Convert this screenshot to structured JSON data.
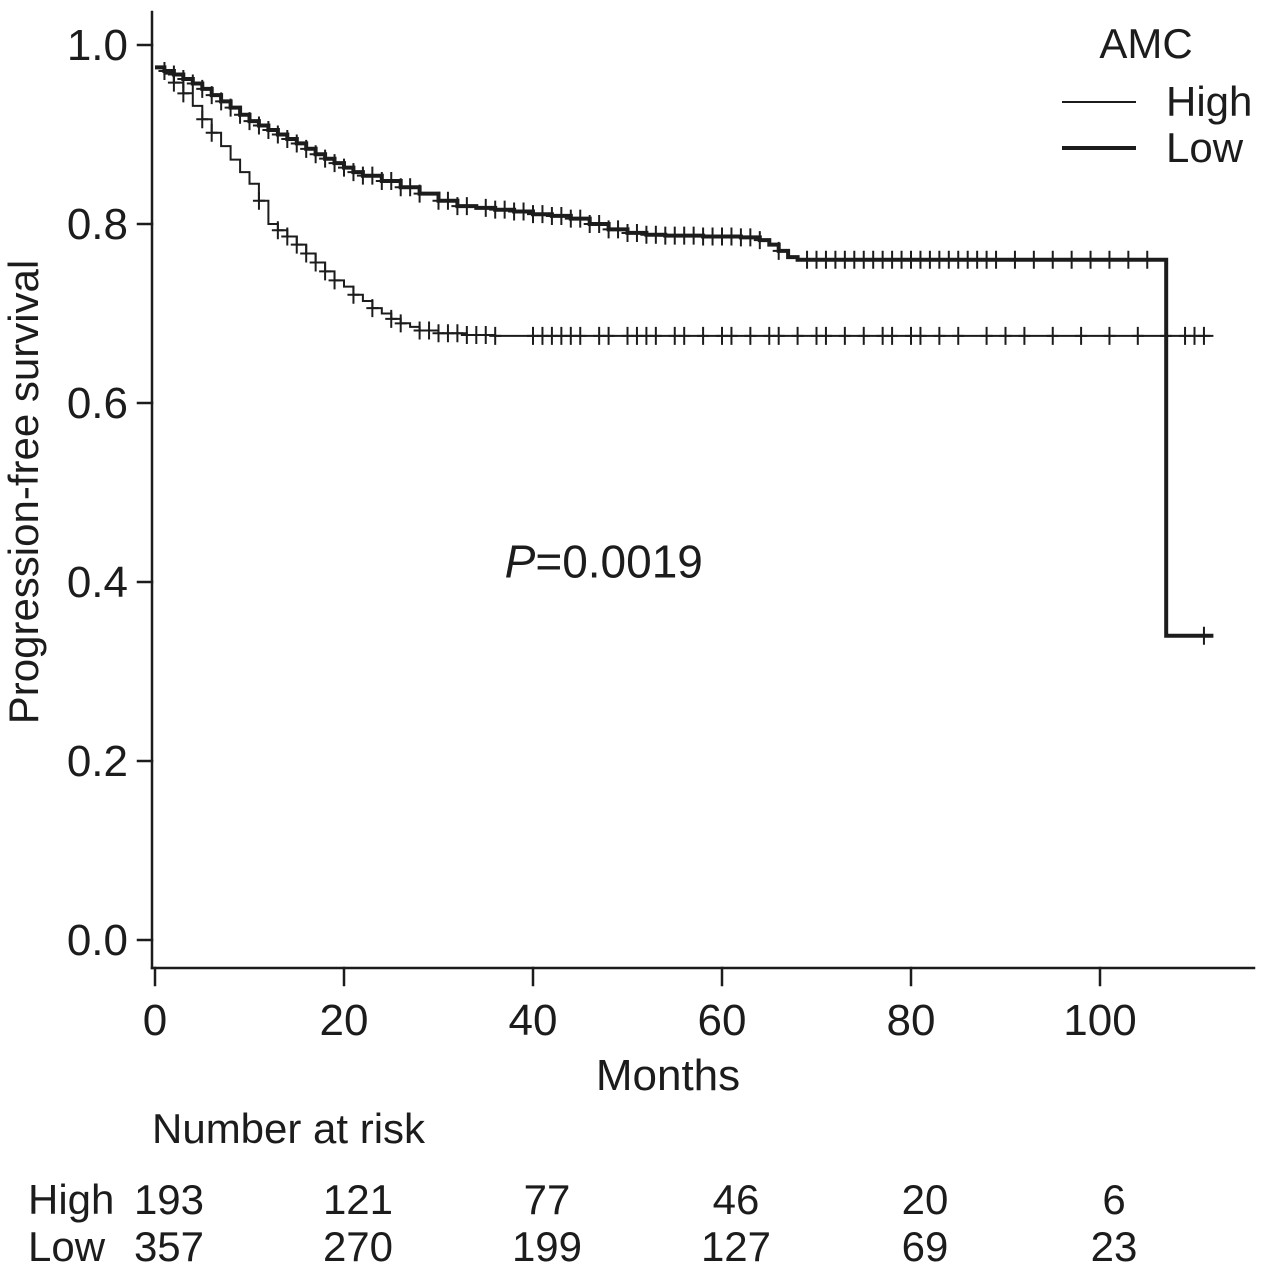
{
  "figure": {
    "background": "#ffffff",
    "ink_color": "#1c1c1c"
  },
  "chart_data": {
    "type": "line",
    "subtype": "kaplan-meier-step",
    "title": "",
    "xlabel": "Months",
    "ylabel": "Progression-free survival",
    "xlim": [
      0,
      115
    ],
    "ylim": [
      0.0,
      1.05
    ],
    "xticks": [
      0,
      20,
      40,
      60,
      80,
      100
    ],
    "yticks": [
      0.0,
      0.2,
      0.4,
      0.6,
      0.8,
      1.0
    ],
    "grid": false,
    "color": "#1c1c1c",
    "legend": {
      "title": "AMC",
      "position": "top-right",
      "entries": [
        {
          "label": "High",
          "stroke_width": 2
        },
        {
          "label": "Low",
          "stroke_width": 4
        }
      ]
    },
    "annotation": {
      "label": "P=0.0019",
      "italic_part": "P",
      "rest_part": "=0.0019",
      "x_month": 37,
      "y_surv": 0.405
    },
    "series": [
      {
        "name": "High",
        "stroke_width": 2,
        "points": [
          [
            0,
            0.975
          ],
          [
            1,
            0.968
          ],
          [
            2,
            0.958
          ],
          [
            3,
            0.946
          ],
          [
            4,
            0.932
          ],
          [
            5,
            0.917
          ],
          [
            6,
            0.902
          ],
          [
            7,
            0.887
          ],
          [
            8,
            0.872
          ],
          [
            9,
            0.858
          ],
          [
            10,
            0.845
          ],
          [
            11,
            0.826
          ],
          [
            12,
            0.8
          ],
          [
            13,
            0.793
          ],
          [
            14,
            0.786
          ],
          [
            15,
            0.777
          ],
          [
            16,
            0.767
          ],
          [
            17,
            0.757
          ],
          [
            18,
            0.747
          ],
          [
            19,
            0.737
          ],
          [
            20,
            0.73
          ],
          [
            21,
            0.721
          ],
          [
            22,
            0.714
          ],
          [
            23,
            0.706
          ],
          [
            24,
            0.7
          ],
          [
            25,
            0.694
          ],
          [
            26,
            0.689
          ],
          [
            27,
            0.685
          ],
          [
            28,
            0.681
          ],
          [
            30,
            0.678
          ],
          [
            33,
            0.676
          ],
          [
            36,
            0.675
          ],
          [
            112,
            0.675
          ]
        ],
        "censor_x": [
          2,
          3,
          5,
          6,
          11,
          13,
          14,
          15,
          16,
          17,
          18,
          19,
          21,
          23,
          25,
          26,
          28,
          29,
          30,
          31,
          32,
          33,
          34,
          35,
          36,
          40,
          41,
          42,
          43,
          44,
          45,
          47,
          48,
          50,
          51,
          52,
          53,
          55,
          56,
          58,
          60,
          61,
          63,
          65,
          66,
          68,
          70,
          71,
          73,
          75,
          77,
          78,
          80,
          81,
          83,
          85,
          88,
          90,
          92,
          95,
          98,
          101,
          104,
          107,
          109,
          110,
          111
        ]
      },
      {
        "name": "Low",
        "stroke_width": 4,
        "points": [
          [
            0,
            0.975
          ],
          [
            1,
            0.971
          ],
          [
            2,
            0.967
          ],
          [
            3,
            0.962
          ],
          [
            4,
            0.957
          ],
          [
            5,
            0.951
          ],
          [
            6,
            0.944
          ],
          [
            7,
            0.937
          ],
          [
            8,
            0.93
          ],
          [
            9,
            0.922
          ],
          [
            10,
            0.915
          ],
          [
            11,
            0.91
          ],
          [
            12,
            0.905
          ],
          [
            13,
            0.9
          ],
          [
            14,
            0.895
          ],
          [
            15,
            0.89
          ],
          [
            16,
            0.884
          ],
          [
            17,
            0.878
          ],
          [
            18,
            0.873
          ],
          [
            19,
            0.868
          ],
          [
            20,
            0.863
          ],
          [
            21,
            0.858
          ],
          [
            22,
            0.854
          ],
          [
            24,
            0.848
          ],
          [
            26,
            0.841
          ],
          [
            28,
            0.834
          ],
          [
            30,
            0.826
          ],
          [
            32,
            0.82
          ],
          [
            34,
            0.818
          ],
          [
            36,
            0.816
          ],
          [
            38,
            0.814
          ],
          [
            40,
            0.811
          ],
          [
            42,
            0.809
          ],
          [
            44,
            0.806
          ],
          [
            46,
            0.8
          ],
          [
            48,
            0.794
          ],
          [
            50,
            0.79
          ],
          [
            52,
            0.788
          ],
          [
            54,
            0.787
          ],
          [
            58,
            0.786
          ],
          [
            62,
            0.785
          ],
          [
            64,
            0.782
          ],
          [
            65,
            0.777
          ],
          [
            66,
            0.77
          ],
          [
            67,
            0.763
          ],
          [
            68,
            0.76
          ],
          [
            107,
            0.34
          ],
          [
            112,
            0.34
          ]
        ],
        "censor_x": [
          1,
          2,
          3,
          4,
          5,
          6,
          7,
          8,
          9,
          10,
          11,
          12,
          13,
          14,
          15,
          16,
          17,
          18,
          19,
          20,
          21,
          22,
          23,
          24,
          25,
          26,
          27,
          28,
          30,
          31,
          32,
          33,
          35,
          36,
          37,
          38,
          39,
          40,
          41,
          42,
          43,
          44,
          45,
          46,
          47,
          48,
          49,
          50,
          51,
          52,
          53,
          54,
          55,
          56,
          57,
          58,
          59,
          60,
          61,
          62,
          63,
          64,
          66,
          69,
          70,
          71,
          72,
          73,
          74,
          75,
          76,
          77,
          78,
          79,
          80,
          81,
          82,
          83,
          84,
          85,
          86,
          87,
          88,
          89,
          91,
          93,
          95,
          97,
          99,
          101,
          103,
          105,
          111
        ]
      }
    ],
    "risk_table": {
      "title": "Number at risk",
      "time_points": [
        0,
        20,
        40,
        60,
        80,
        100
      ],
      "rows": [
        {
          "label": "High",
          "values": [
            "193",
            "121",
            "77",
            "46",
            "20",
            "6"
          ]
        },
        {
          "label": "Low",
          "values": [
            "357",
            "270",
            "199",
            "127",
            "69",
            "23"
          ]
        }
      ]
    }
  }
}
